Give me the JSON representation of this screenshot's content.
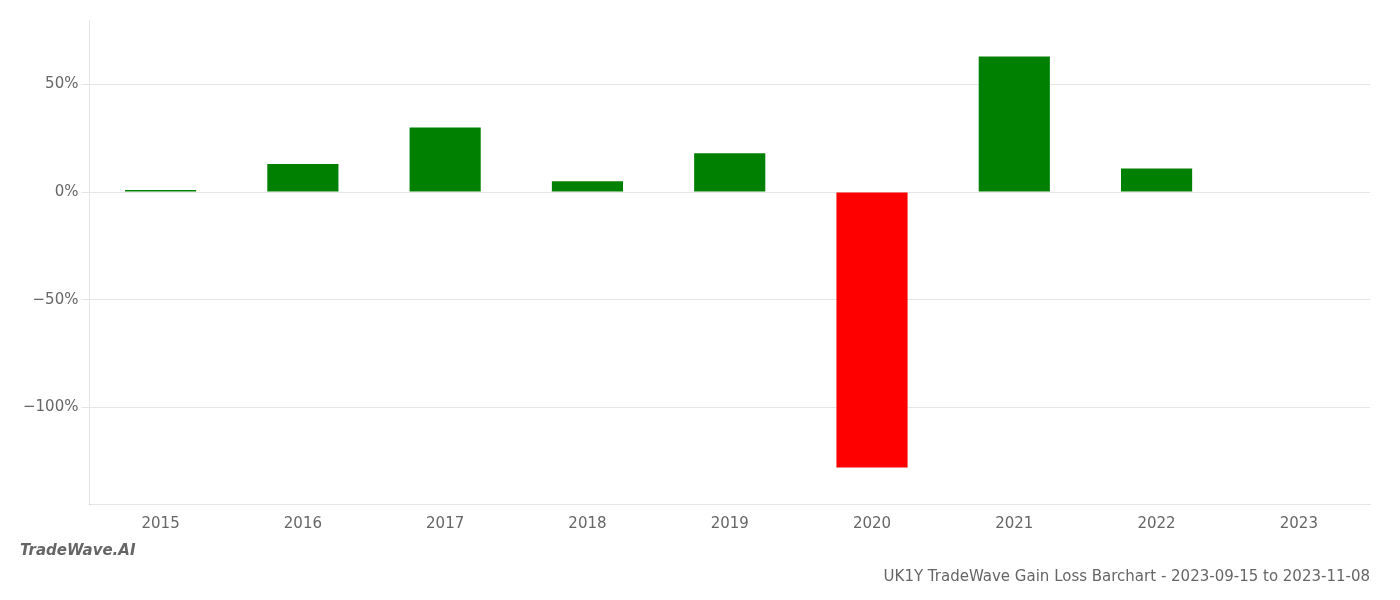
{
  "chart_data": {
    "type": "bar",
    "title": "UK1Y TradeWave Gain Loss Barchart - 2023-09-15 to 2023-11-08",
    "annotations": [
      "TradeWave.AI"
    ],
    "categories": [
      "2015",
      "2016",
      "2017",
      "2018",
      "2019",
      "2020",
      "2021",
      "2022",
      "2023"
    ],
    "values": [
      1.0,
      13.0,
      30.0,
      5.0,
      18.0,
      -128.0,
      63.0,
      11.0,
      0.0
    ],
    "colors": [
      "#008000",
      "#008000",
      "#008000",
      "#008000",
      "#008000",
      "#ff0000",
      "#008000",
      "#008000",
      "#008000"
    ],
    "ylim": [
      -145,
      80
    ],
    "yticks": [
      {
        "value": -100,
        "label": "−100%"
      },
      {
        "value": -50,
        "label": "−50%"
      },
      {
        "value": 0,
        "label": "0%"
      },
      {
        "value": 50,
        "label": "50%"
      }
    ],
    "grid": true
  }
}
